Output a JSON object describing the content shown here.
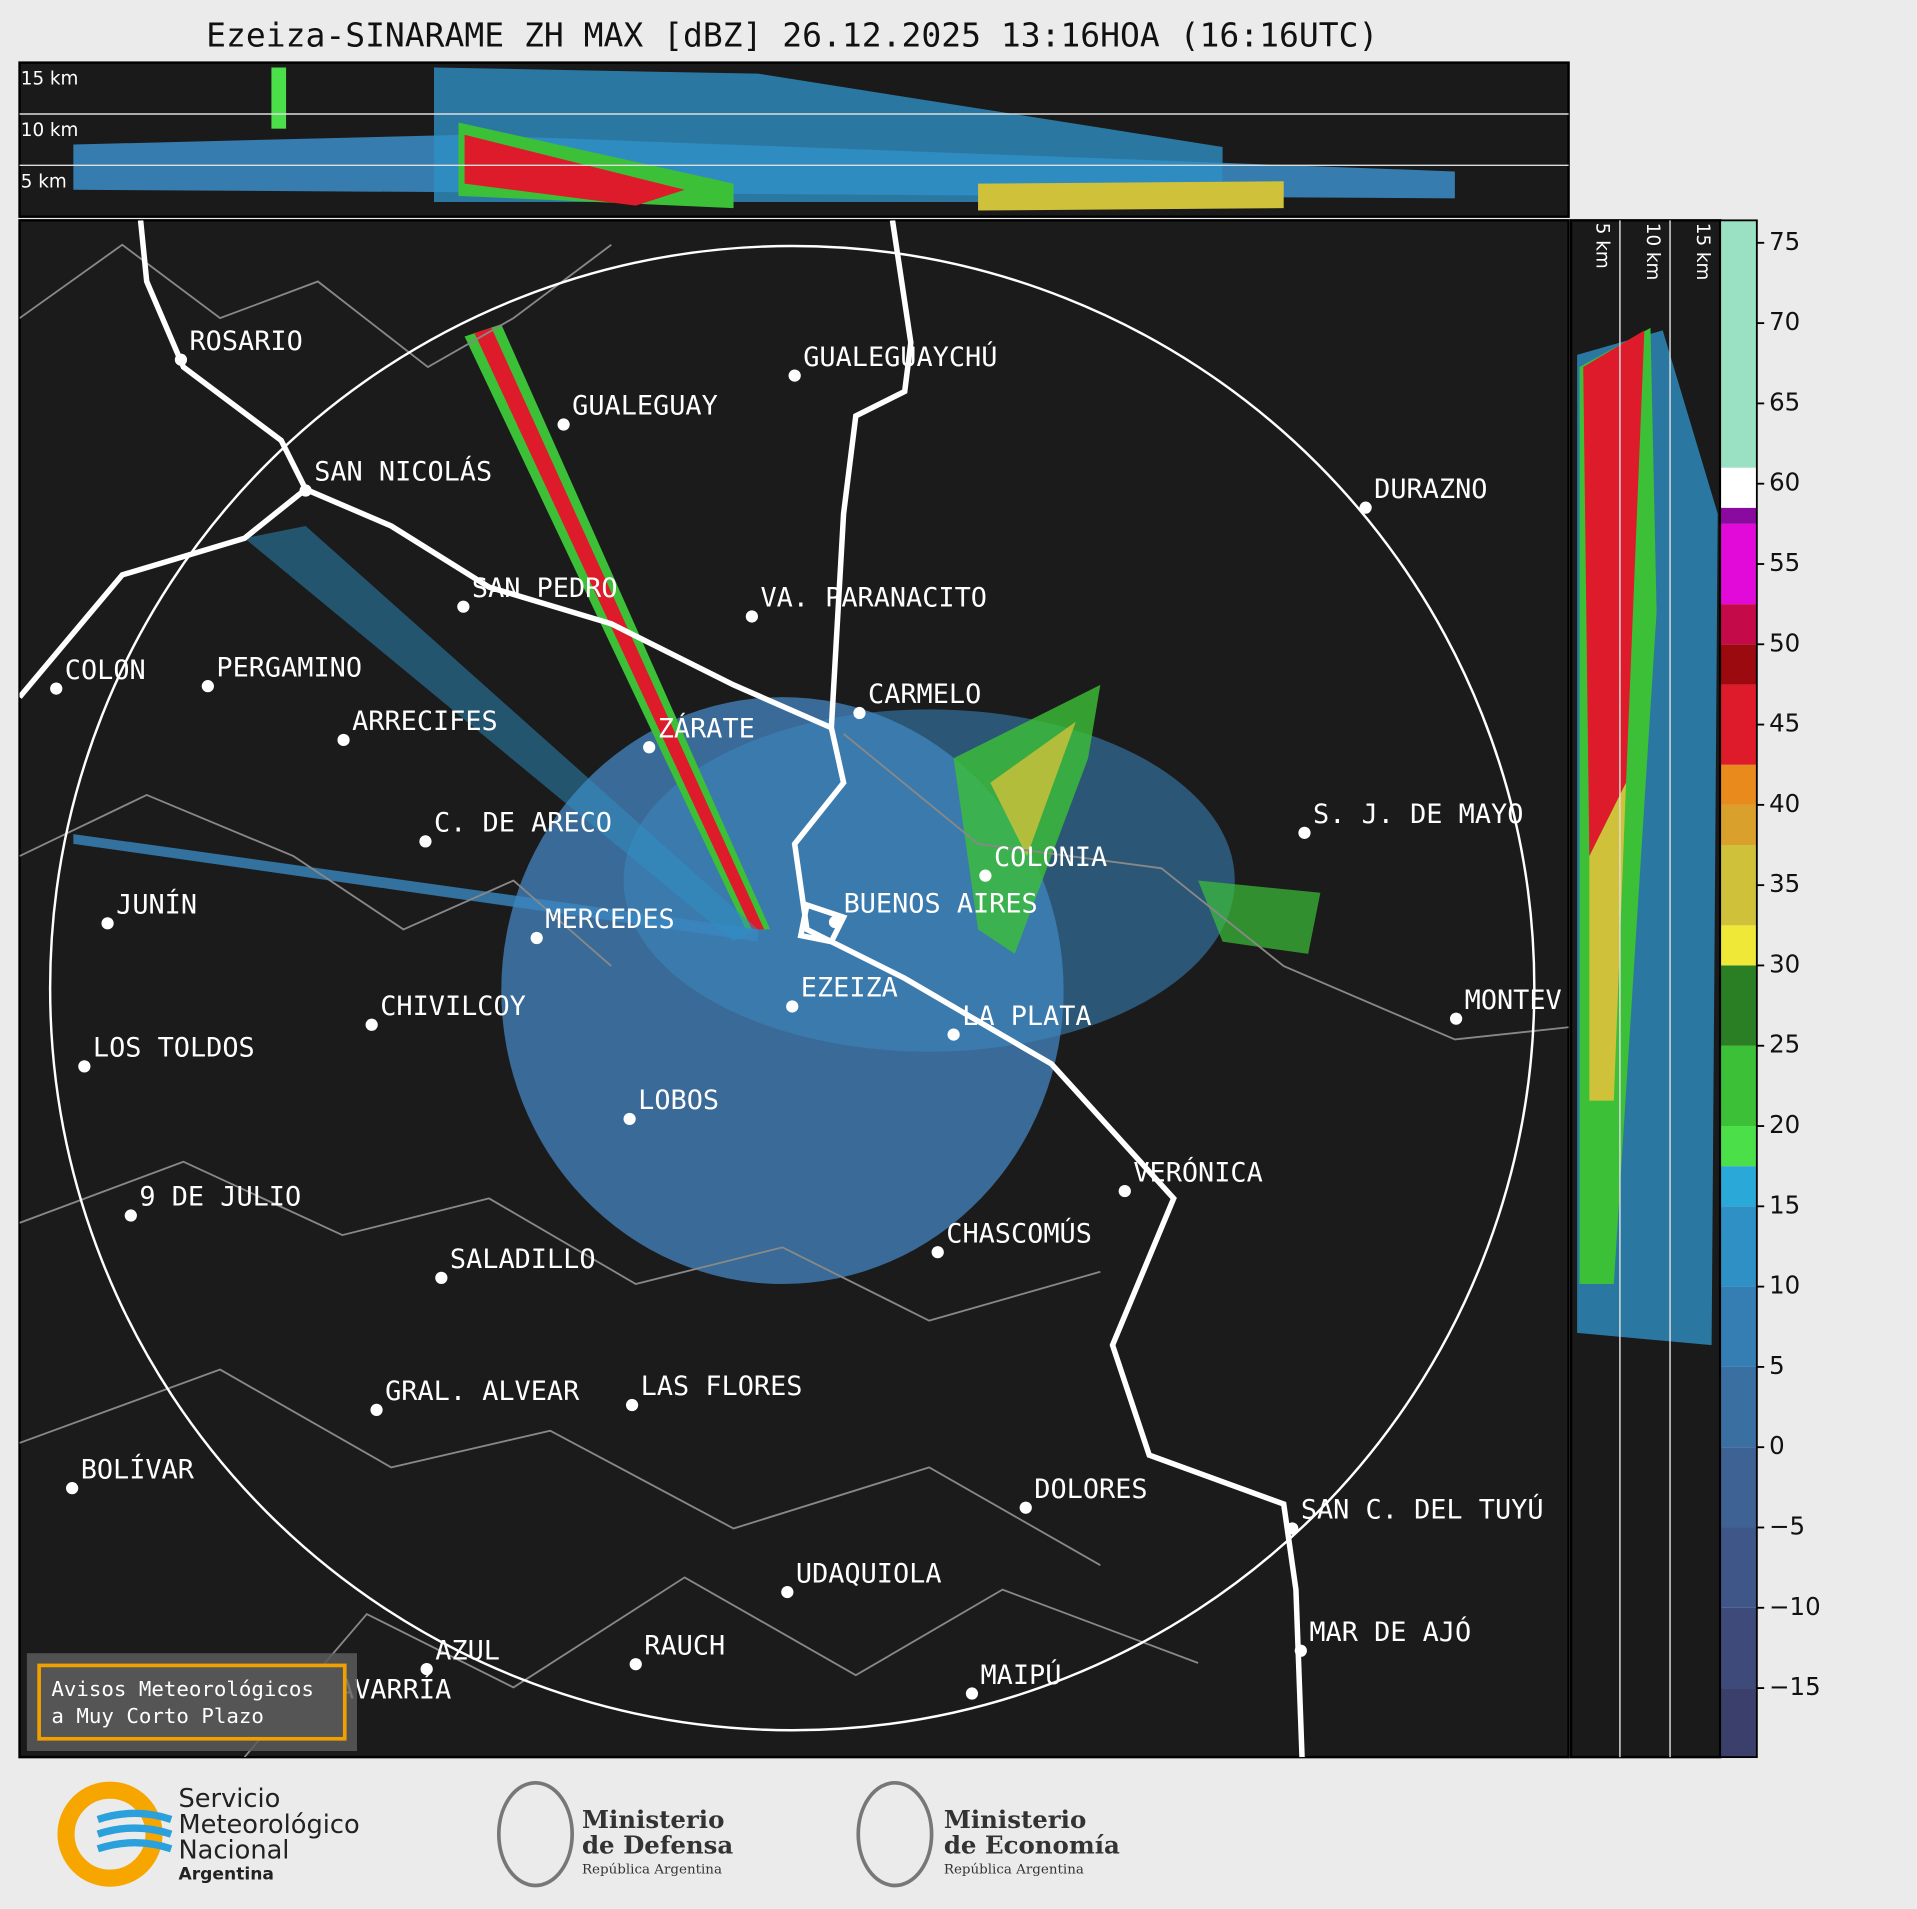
{
  "title": "Ezeiza-SINARAME ZH MAX [dBZ] 26.12.2025 13:16HOA (16:16UTC)",
  "top_panel": {
    "height_labels": [
      "15 km",
      "10 km",
      "5 km"
    ]
  },
  "side_panel": {
    "height_labels": [
      "5 km",
      "10 km",
      "15 km"
    ]
  },
  "cities": [
    "ROSARIO",
    "GUALEGUAYCHÚ",
    "GUALEGUAY",
    "SAN NICOLÁS",
    "DURAZNO",
    "SAN PEDRO",
    "VA. PARANACITO",
    "COLON",
    "PERGAMINO",
    "CARMELO",
    "ARRECIFES",
    "ZÁRATE",
    "C. DE ARECO",
    "S. J. DE MAYO",
    "COLONIA",
    "BUENOS AIRES",
    "JUNÍN",
    "MERCEDES",
    "MONTEV",
    "EZEIZA",
    "CHIVILCOY",
    "LA PLATA",
    "LOS TOLDOS",
    "LOBOS",
    "VERÓNICA",
    "9 DE JULIO",
    "CHASCOMÚS",
    "SALADILLO",
    "GRAL. ALVEAR",
    "LAS FLORES",
    "BOLÍVAR",
    "DOLORES",
    "SAN C. DEL TUYÚ",
    "UDAQUIOLA",
    "MAR DE AJÓ",
    "RAUCH",
    "AZUL",
    "OLAVARRÍA",
    "MAIPÚ"
  ],
  "warning_box": [
    "Avisos Meteorológicos",
    "a Muy Corto Plazo"
  ],
  "colorbar": {
    "lim": [
      -19.3,
      76.4
    ],
    "ticks": [
      75,
      70,
      65,
      60,
      55,
      50,
      45,
      40,
      35,
      30,
      25,
      20,
      15,
      10,
      5,
      0,
      {
        "value": -5,
        "label": "−5"
      },
      {
        "value": -10,
        "label": "−10"
      },
      {
        "value": -15,
        "label": "−15"
      }
    ],
    "segments": [
      {
        "from": -19.3,
        "to": -15,
        "color": "#3a3f6b"
      },
      {
        "from": -15,
        "to": -10,
        "color": "#3d4a7a"
      },
      {
        "from": -10,
        "to": -5,
        "color": "#3f5688"
      },
      {
        "from": -5,
        "to": 0,
        "color": "#3e6294"
      },
      {
        "from": 0,
        "to": 5,
        "color": "#3a6fa2"
      },
      {
        "from": 5,
        "to": 10,
        "color": "#357eb4"
      },
      {
        "from": 10,
        "to": 15,
        "color": "#2e90c4"
      },
      {
        "from": 15,
        "to": 17.5,
        "color": "#2aa8d8"
      },
      {
        "from": 17.5,
        "to": 20,
        "color": "#4be04a"
      },
      {
        "from": 20,
        "to": 25,
        "color": "#3cc037"
      },
      {
        "from": 25,
        "to": 30,
        "color": "#2a7f25"
      },
      {
        "from": 30,
        "to": 32.5,
        "color": "#f0e836"
      },
      {
        "from": 32.5,
        "to": 37.5,
        "color": "#cfc23a"
      },
      {
        "from": 37.5,
        "to": 40,
        "color": "#d9a02b"
      },
      {
        "from": 40,
        "to": 42.5,
        "color": "#e88a1c"
      },
      {
        "from": 42.5,
        "to": 47.5,
        "color": "#dd1b2a"
      },
      {
        "from": 47.5,
        "to": 50,
        "color": "#9a0a0e"
      },
      {
        "from": 50,
        "to": 52.5,
        "color": "#c40a48"
      },
      {
        "from": 52.5,
        "to": 57.5,
        "color": "#e20ad8"
      },
      {
        "from": 57.5,
        "to": 58.5,
        "color": "#8a0aa0"
      },
      {
        "from": 58.5,
        "to": 61,
        "color": "#ffffff"
      },
      {
        "from": 61,
        "to": 76.4,
        "color": "#9ae0c2"
      }
    ]
  },
  "logos": {
    "smn": [
      "Servicio",
      "Meteorológico",
      "Nacional",
      "Argentina"
    ],
    "defensa": [
      "Ministerio",
      "de Defensa",
      "República Argentina"
    ],
    "economia": [
      "Ministerio",
      "de Economía",
      "República Argentina"
    ]
  }
}
